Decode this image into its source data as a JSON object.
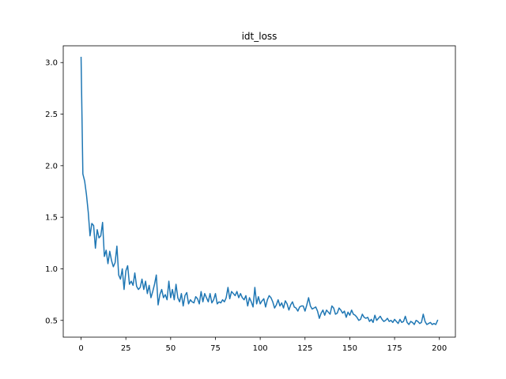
{
  "chart_data": {
    "type": "line",
    "title": "idt_loss",
    "xlabel": "",
    "ylabel": "",
    "xlim": [
      -9.95,
      208.95
    ],
    "ylim": [
      0.3375,
      3.1625
    ],
    "grid": false,
    "legend": "none",
    "x_ticks": [
      0,
      25,
      50,
      75,
      100,
      125,
      150,
      175,
      200
    ],
    "y_ticks": [
      0.5,
      1.0,
      1.5,
      2.0,
      2.5,
      3.0
    ],
    "x_tick_labels": [
      "0",
      "25",
      "50",
      "75",
      "100",
      "125",
      "150",
      "175",
      "200"
    ],
    "y_tick_labels": [
      "0.5",
      "1.0",
      "1.5",
      "2.0",
      "2.5",
      "3.0"
    ],
    "series": [
      {
        "color": "#1f77b4",
        "x_start": 0,
        "x_step": 1,
        "values": [
          3.05,
          1.92,
          1.85,
          1.72,
          1.55,
          1.32,
          1.44,
          1.42,
          1.2,
          1.38,
          1.3,
          1.32,
          1.45,
          1.12,
          1.18,
          1.05,
          1.17,
          1.08,
          1.02,
          1.06,
          1.22,
          0.94,
          0.9,
          1.0,
          0.8,
          0.98,
          1.03,
          0.85,
          0.88,
          0.84,
          0.96,
          0.83,
          0.8,
          0.82,
          0.9,
          0.8,
          0.88,
          0.76,
          0.84,
          0.72,
          0.78,
          0.85,
          0.94,
          0.65,
          0.75,
          0.8,
          0.72,
          0.75,
          0.7,
          0.88,
          0.72,
          0.8,
          0.7,
          0.85,
          0.72,
          0.68,
          0.76,
          0.64,
          0.74,
          0.77,
          0.66,
          0.7,
          0.68,
          0.67,
          0.73,
          0.71,
          0.66,
          0.78,
          0.68,
          0.76,
          0.72,
          0.68,
          0.76,
          0.67,
          0.7,
          0.76,
          0.66,
          0.68,
          0.67,
          0.7,
          0.68,
          0.72,
          0.82,
          0.71,
          0.78,
          0.76,
          0.74,
          0.78,
          0.72,
          0.76,
          0.72,
          0.7,
          0.74,
          0.64,
          0.72,
          0.68,
          0.63,
          0.82,
          0.66,
          0.73,
          0.66,
          0.69,
          0.71,
          0.63,
          0.7,
          0.74,
          0.72,
          0.68,
          0.62,
          0.65,
          0.7,
          0.64,
          0.67,
          0.62,
          0.69,
          0.66,
          0.6,
          0.65,
          0.68,
          0.63,
          0.62,
          0.59,
          0.63,
          0.64,
          0.64,
          0.59,
          0.65,
          0.72,
          0.64,
          0.61,
          0.62,
          0.63,
          0.59,
          0.52,
          0.57,
          0.6,
          0.55,
          0.6,
          0.58,
          0.56,
          0.64,
          0.62,
          0.56,
          0.57,
          0.62,
          0.6,
          0.57,
          0.59,
          0.53,
          0.58,
          0.55,
          0.6,
          0.56,
          0.55,
          0.53,
          0.5,
          0.51,
          0.56,
          0.53,
          0.52,
          0.53,
          0.49,
          0.51,
          0.48,
          0.55,
          0.5,
          0.52,
          0.54,
          0.51,
          0.49,
          0.5,
          0.52,
          0.49,
          0.5,
          0.48,
          0.51,
          0.49,
          0.47,
          0.51,
          0.48,
          0.49,
          0.54,
          0.48,
          0.46,
          0.49,
          0.48,
          0.46,
          0.5,
          0.49,
          0.47,
          0.48,
          0.56,
          0.49,
          0.46,
          0.47,
          0.48,
          0.46,
          0.47,
          0.46,
          0.5
        ]
      }
    ]
  }
}
